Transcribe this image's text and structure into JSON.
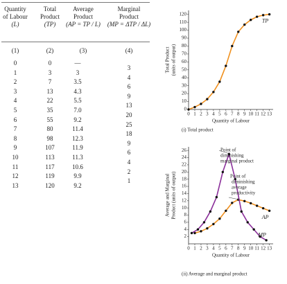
{
  "table": {
    "headers": [
      [
        "Quantity",
        "of Labour",
        "(L)"
      ],
      [
        "Total",
        "Product",
        "(TP)"
      ],
      [
        "Average",
        "Product",
        "(AP = TP / L)"
      ],
      [
        "Marginal",
        "Product",
        "(MP = ΔTP / ΔL)"
      ]
    ],
    "column_numbers": [
      "(1)",
      "(2)",
      "(3)",
      "(4)"
    ],
    "rows": [
      [
        "0",
        "0",
        "—"
      ],
      [
        "1",
        "3",
        "3"
      ],
      [
        "2",
        "7",
        "3.5"
      ],
      [
        "3",
        "13",
        "4.3"
      ],
      [
        "4",
        "22",
        "5.5"
      ],
      [
        "5",
        "35",
        "7.0"
      ],
      [
        "6",
        "55",
        "9.2"
      ],
      [
        "7",
        "80",
        "11.4"
      ],
      [
        "8",
        "98",
        "12.3"
      ],
      [
        "9",
        "107",
        "11.9"
      ],
      [
        "10",
        "113",
        "11.3"
      ],
      [
        "11",
        "117",
        "10.6"
      ],
      [
        "12",
        "119",
        "9.9"
      ],
      [
        "13",
        "120",
        "9.2"
      ]
    ],
    "marginal": [
      "3",
      "4",
      "6",
      "9",
      "13",
      "20",
      "25",
      "18",
      "9",
      "6",
      "4",
      "2",
      "1"
    ]
  },
  "chart_data": [
    {
      "type": "line",
      "y_label": [
        "Total Product",
        "(units of output)"
      ],
      "x_label": "Quantity of Labour",
      "caption": "(i) Total product",
      "series": [
        {
          "name": "TP",
          "color": "#f0901e",
          "marker_color": "#111111",
          "x": [
            0,
            1,
            2,
            3,
            4,
            5,
            6,
            7,
            8,
            9,
            10,
            11,
            12,
            13
          ],
          "values": [
            0,
            3,
            7,
            13,
            22,
            35,
            55,
            80,
            98,
            107,
            113,
            117,
            119,
            120
          ]
        }
      ],
      "xlim": [
        0,
        13.6
      ],
      "ylim": [
        0,
        125
      ],
      "xticks": [
        0,
        1,
        2,
        3,
        4,
        5,
        6,
        7,
        8,
        9,
        10,
        11,
        12,
        13
      ],
      "yticks": [
        0,
        10,
        20,
        30,
        40,
        50,
        60,
        70,
        80,
        90,
        100,
        110,
        120
      ]
    },
    {
      "type": "line",
      "y_label": [
        "Average and Marginal",
        "Product (units of output)"
      ],
      "x_label": "Quantity of Labour",
      "caption": "(ii) Average and marginal product",
      "series": [
        {
          "name": "AP",
          "color": "#f0901e",
          "marker_color": "#111111",
          "x": [
            1,
            2,
            3,
            4,
            5,
            6,
            7,
            8,
            9,
            10,
            11,
            12,
            13
          ],
          "values": [
            3,
            3.5,
            4.3,
            5.5,
            7.0,
            9.2,
            11.4,
            12.3,
            11.9,
            11.3,
            10.6,
            9.9,
            9.2
          ]
        },
        {
          "name": "MP",
          "color": "#8b2f9a",
          "marker_color": "#111111",
          "x": [
            0.5,
            1.5,
            2.5,
            3.5,
            4.5,
            5.5,
            6.5,
            7.5,
            8.5,
            9.5,
            10.5,
            11.5,
            12.5
          ],
          "values": [
            3,
            4,
            6,
            9,
            13,
            20,
            25,
            18,
            9,
            6,
            4,
            2,
            1
          ]
        }
      ],
      "annotations": [
        {
          "lines": [
            "Point of",
            "diminishing",
            "marginal product"
          ]
        },
        {
          "lines": [
            "Point of",
            "diminishing",
            "average",
            "productivity"
          ]
        }
      ],
      "xlim": [
        0,
        13.6
      ],
      "ylim": [
        0,
        27
      ],
      "xticks": [
        0,
        1,
        2,
        3,
        4,
        5,
        6,
        7,
        8,
        9,
        10,
        11,
        12,
        13
      ],
      "yticks": [
        2,
        4,
        6,
        8,
        10,
        12,
        14,
        16,
        18,
        20,
        22,
        24,
        26
      ]
    }
  ]
}
